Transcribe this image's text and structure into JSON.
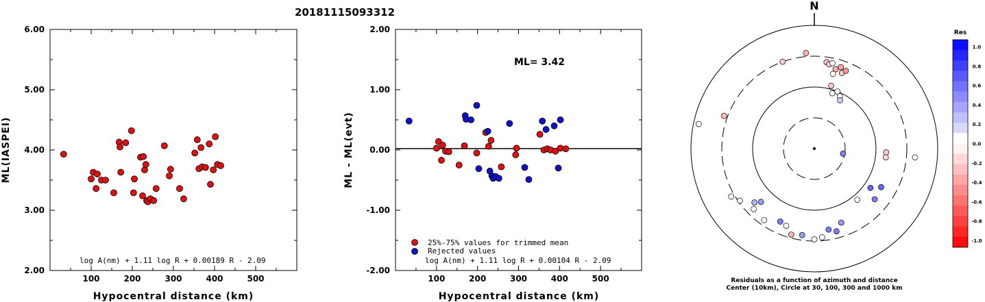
{
  "page_title": "20181115093312",
  "chart_data": [
    {
      "type": "scatter",
      "xlabel": "Hypocentral distance (km)",
      "ylabel": "ML(IASPEI)",
      "xlim": [
        0,
        600
      ],
      "ylim": [
        2.0,
        6.0
      ],
      "xticks": [
        "100",
        "200",
        "300",
        "400",
        "500"
      ],
      "yticks": [
        "2.00",
        "3.00",
        "4.00",
        "5.00",
        "6.00"
      ],
      "formula": "log A(nm) + 1.11 log R + 0.00189 R - 2.09",
      "point_color": "#dd1111",
      "points": [
        [
          33,
          3.93
        ],
        [
          100,
          3.52
        ],
        [
          105,
          3.63
        ],
        [
          115,
          3.6
        ],
        [
          125,
          3.5
        ],
        [
          135,
          3.5
        ],
        [
          112,
          3.36
        ],
        [
          155,
          3.29
        ],
        [
          168,
          4.13
        ],
        [
          170,
          4.05
        ],
        [
          184,
          4.12
        ],
        [
          172,
          3.63
        ],
        [
          198,
          4.32
        ],
        [
          205,
          3.52
        ],
        [
          203,
          3.29
        ],
        [
          220,
          3.88
        ],
        [
          227,
          3.89
        ],
        [
          230,
          3.67
        ],
        [
          233,
          3.76
        ],
        [
          225,
          3.24
        ],
        [
          235,
          3.16
        ],
        [
          238,
          3.14
        ],
        [
          244,
          3.19
        ],
        [
          252,
          3.16
        ],
        [
          258,
          3.36
        ],
        [
          278,
          4.07
        ],
        [
          290,
          3.57
        ],
        [
          293,
          3.68
        ],
        [
          315,
          3.36
        ],
        [
          325,
          3.19
        ],
        [
          352,
          3.95
        ],
        [
          358,
          4.17
        ],
        [
          367,
          4.04
        ],
        [
          362,
          3.69
        ],
        [
          370,
          3.72
        ],
        [
          378,
          3.71
        ],
        [
          387,
          4.1
        ],
        [
          390,
          3.43
        ],
        [
          397,
          3.67
        ],
        [
          402,
          4.22
        ],
        [
          407,
          3.76
        ],
        [
          415,
          3.74
        ]
      ]
    },
    {
      "type": "scatter",
      "xlabel": "Hypocentral distance (km)",
      "ylabel": "ML - ML(evt)",
      "xlim": [
        0,
        600
      ],
      "ylim": [
        -2.0,
        2.0
      ],
      "xticks": [
        "100",
        "200",
        "300",
        "400",
        "500"
      ],
      "yticks": [
        "-2.00",
        "-1.00",
        "0.00",
        "1.00",
        "2.00"
      ],
      "annotation": "ML= 3.42",
      "formula": "log A(nm) + 1.11 log R + 0.00104 R - 2.09",
      "legend": [
        "25%-75% values for trimmed mean",
        "Rejected values"
      ],
      "series": [
        {
          "name": "25%-75% values for trimmed mean",
          "color": "#dd1111",
          "points": [
            [
              100,
              0.03
            ],
            [
              105,
              0.14
            ],
            [
              112,
              -0.17
            ],
            [
              115,
              0.08
            ],
            [
              122,
              -0.02
            ],
            [
              130,
              -0.03
            ],
            [
              155,
              -0.25
            ],
            [
              168,
              0.07
            ],
            [
              198,
              -0.05
            ],
            [
              220,
              0.29
            ],
            [
              227,
              0.06
            ],
            [
              233,
              0.16
            ],
            [
              258,
              -0.28
            ],
            [
              293,
              -0.08
            ],
            [
              295,
              0.03
            ],
            [
              352,
              0.26
            ],
            [
              362,
              0.0
            ],
            [
              370,
              0.02
            ],
            [
              378,
              0.0
            ],
            [
              390,
              -0.02
            ],
            [
              402,
              0.03
            ],
            [
              415,
              0.02
            ]
          ]
        },
        {
          "name": "Rejected values",
          "color": "#1111cc",
          "points": [
            [
              33,
              0.48
            ],
            [
              170,
              0.57
            ],
            [
              172,
              0.51
            ],
            [
              184,
              0.5
            ],
            [
              198,
              0.74
            ],
            [
              203,
              -0.31
            ],
            [
              225,
              0.31
            ],
            [
              230,
              -0.35
            ],
            [
              235,
              -0.43
            ],
            [
              238,
              -0.47
            ],
            [
              244,
              -0.44
            ],
            [
              252,
              -0.47
            ],
            [
              278,
              0.44
            ],
            [
              315,
              -0.29
            ],
            [
              325,
              -0.49
            ],
            [
              358,
              0.48
            ],
            [
              367,
              0.34
            ],
            [
              387,
              0.4
            ],
            [
              397,
              -0.3
            ],
            [
              402,
              0.5
            ]
          ]
        }
      ]
    },
    {
      "type": "scatter",
      "subtype": "polar",
      "north_label": "N",
      "caption_line1": "Residuals as a function of azimuth and distance",
      "caption_line2": "Center (10km), Circle at 30, 100, 300 and 1000 km",
      "colorbar_title": "Res",
      "colorbar_ticks": [
        "1.0",
        "0.8",
        "0.6",
        "0.4",
        "0.2",
        "0.0",
        "-0.2",
        "-0.4",
        "-0.6",
        "-0.8",
        "-1.0"
      ],
      "points": [
        {
          "az": 355,
          "dist": 280,
          "res": -0.3
        },
        {
          "az": 340,
          "dist": 270,
          "res": -0.2
        },
        {
          "az": 8,
          "dist": 255,
          "res": -0.25
        },
        {
          "az": 10,
          "dist": 250,
          "res": -0.15
        },
        {
          "az": 12,
          "dist": 255,
          "res": 0.0
        },
        {
          "az": 15,
          "dist": 240,
          "res": -0.3
        },
        {
          "az": 18,
          "dist": 250,
          "res": -0.35
        },
        {
          "az": 20,
          "dist": 235,
          "res": -0.2
        },
        {
          "az": 14,
          "dist": 225,
          "res": 0.0
        },
        {
          "az": 22,
          "dist": 245,
          "res": -0.4
        },
        {
          "az": 15,
          "dist": 190,
          "res": -0.2
        },
        {
          "az": 18,
          "dist": 170,
          "res": 0.0
        },
        {
          "az": 22,
          "dist": 180,
          "res": 0.0
        },
        {
          "az": 26,
          "dist": 170,
          "res": 0.0
        },
        {
          "az": 28,
          "dist": 160,
          "res": 0.2
        },
        {
          "az": 290,
          "dist": 280,
          "res": -0.25
        },
        {
          "az": 282,
          "dist": 345,
          "res": 0.0
        },
        {
          "az": 93,
          "dist": 210,
          "res": -0.2
        },
        {
          "az": 97,
          "dist": 210,
          "res": -0.15
        },
        {
          "az": 95,
          "dist": 295,
          "res": 0.0
        },
        {
          "az": 100,
          "dist": 85,
          "res": 0.5
        },
        {
          "az": 120,
          "dist": 225,
          "res": 0.6
        },
        {
          "az": 130,
          "dist": 230,
          "res": 0.5
        },
        {
          "az": 125,
          "dist": 200,
          "res": 0.6
        },
        {
          "az": 140,
          "dist": 195,
          "res": 0.0
        },
        {
          "az": 160,
          "dist": 230,
          "res": 0.4
        },
        {
          "az": 170,
          "dist": 240,
          "res": 0.5
        },
        {
          "az": 165,
          "dist": 250,
          "res": 0.5
        },
        {
          "az": 175,
          "dist": 260,
          "res": 0.0
        },
        {
          "az": 180,
          "dist": 265,
          "res": 0.0
        },
        {
          "az": 188,
          "dist": 255,
          "res": 0.4
        },
        {
          "az": 195,
          "dist": 260,
          "res": -0.3
        },
        {
          "az": 200,
          "dist": 240,
          "res": 0.0
        },
        {
          "az": 205,
          "dist": 235,
          "res": 0.5
        },
        {
          "az": 215,
          "dist": 255,
          "res": 0.0
        },
        {
          "az": 225,
          "dist": 250,
          "res": 0.0
        },
        {
          "az": 228,
          "dist": 235,
          "res": 0.3
        },
        {
          "az": 235,
          "dist": 265,
          "res": 0.0
        },
        {
          "az": 225,
          "dist": 220,
          "res": 0.4
        },
        {
          "az": 240,
          "dist": 280,
          "res": 0.0
        }
      ]
    }
  ]
}
